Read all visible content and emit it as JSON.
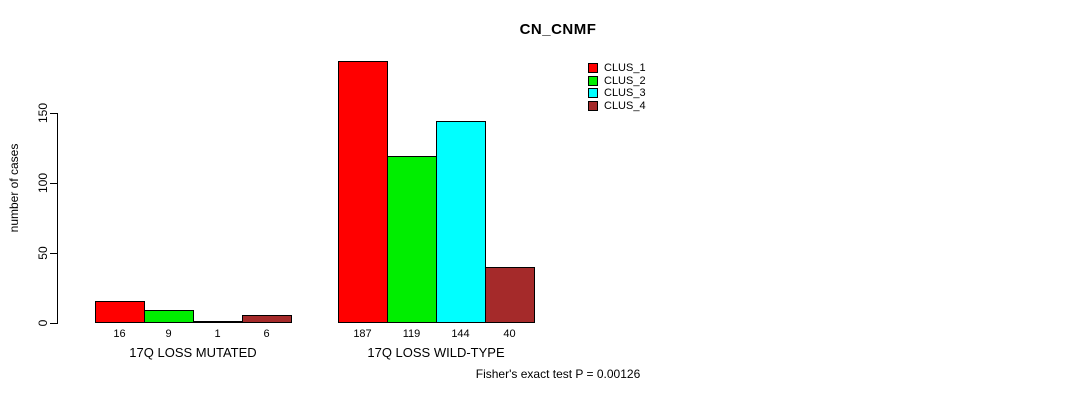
{
  "title": "CN_CNMF",
  "ylabel": "number of cases",
  "footer": "Fisher's exact test P = 0.00126",
  "colors": {
    "clus_1": "#FF0000",
    "clus_2": "#00EE00",
    "clus_3": "#00FFFF",
    "clus_4": "#A52A2A",
    "axis": "#000000",
    "background": "#FFFFFF"
  },
  "legend": {
    "position": "top-right",
    "items": [
      {
        "label": "CLUS_1",
        "color": "#FF0000"
      },
      {
        "label": "CLUS_2",
        "color": "#00EE00"
      },
      {
        "label": "CLUS_3",
        "color": "#00FFFF"
      },
      {
        "label": "CLUS_4",
        "color": "#A52A2A"
      }
    ]
  },
  "chart_data": {
    "type": "bar",
    "title": "CN_CNMF",
    "xlabel": "",
    "ylabel": "number of cases",
    "categories": [
      "17Q LOSS MUTATED",
      "17Q LOSS WILD-TYPE"
    ],
    "series": [
      {
        "name": "CLUS_1",
        "color": "#FF0000",
        "values": [
          16,
          187
        ]
      },
      {
        "name": "CLUS_2",
        "color": "#00EE00",
        "values": [
          9,
          119
        ]
      },
      {
        "name": "CLUS_3",
        "color": "#00FFFF",
        "values": [
          1,
          144
        ]
      },
      {
        "name": "CLUS_4",
        "color": "#A52A2A",
        "values": [
          6,
          40
        ]
      }
    ],
    "bar_value_labels": [
      [
        16,
        9,
        1,
        6
      ],
      [
        187,
        119,
        144,
        40
      ]
    ],
    "yticks": [
      0,
      50,
      100,
      150
    ],
    "ylim": [
      0,
      190
    ],
    "grid": false,
    "legend_position": "top-right",
    "annotation": "Fisher's exact test P = 0.00126"
  }
}
